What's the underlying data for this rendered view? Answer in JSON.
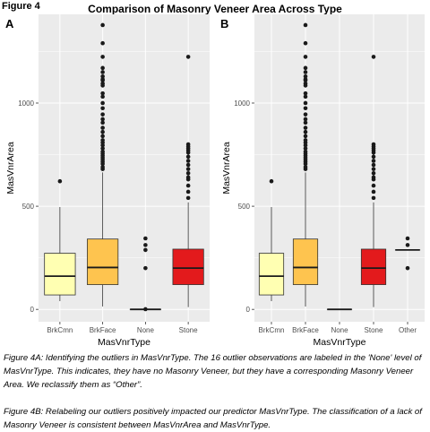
{
  "figure_label": "Figure 4",
  "title": "Comparison of Masonry Veneer Area Across Type",
  "captions": {
    "a": "Figure 4A: Identifying the outliers in MasVnrType. The 16 outlier observations are labeled in the 'None' level of MasVnrType. This indicates, they have no Masonry Veneer, but they have a corresponding Masonry Veneer Area. We reclassify them as “Other”.",
    "b": "Figure 4B: Relabeling our outliers positively impacted our predictor MasVnrType. The classification of a lack of Masonry Veneer is consistent between MasVnrArea and MasVnrType."
  },
  "chart_data": [
    {
      "panel": "A",
      "type": "boxplot",
      "xlabel": "MasVnrType",
      "ylabel": "MasVnrArea",
      "ylim": [
        -60,
        1430
      ],
      "yticks": [
        0,
        500,
        1000
      ],
      "grid": true,
      "categories": [
        "BrkCmn",
        "BrkFace",
        "None",
        "Stone"
      ],
      "boxes": [
        {
          "category": "BrkCmn",
          "color": "#FFFFB2",
          "q1": 70,
          "median": 161,
          "q3": 272,
          "whisker_low": 40,
          "whisker_high": 496,
          "outliers": [
            621
          ]
        },
        {
          "category": "BrkFace",
          "color": "#FEC44F",
          "q1": 120,
          "median": 203,
          "q3": 341,
          "whisker_low": 14,
          "whisker_high": 664,
          "outliers": [
            680,
            690,
            705,
            715,
            725,
            735,
            745,
            755,
            765,
            780,
            795,
            808,
            820,
            840,
            860,
            880,
            905,
            922,
            945,
            975,
            1000,
            1031,
            1047,
            1085,
            1095,
            1110,
            1115,
            1129,
            1150,
            1170,
            1224,
            1290,
            1378
          ]
        },
        {
          "category": "None",
          "color": "#FFFFFF",
          "q1": 0,
          "median": 0,
          "q3": 0,
          "whisker_low": 0,
          "whisker_high": 0,
          "outliers": [
            1,
            200,
            288,
            312,
            344
          ]
        },
        {
          "category": "Stone",
          "color": "#E31A1C",
          "q1": 120,
          "median": 200,
          "q3": 292,
          "whisker_low": 11,
          "whisker_high": 519,
          "outliers": [
            540,
            570,
            600,
            630,
            640,
            660,
            680,
            700,
            720,
            740,
            760,
            770,
            780,
            790,
            800,
            1224
          ]
        }
      ]
    },
    {
      "panel": "B",
      "type": "boxplot",
      "xlabel": "MasVnrType",
      "ylabel": "MasVnrArea",
      "ylim": [
        -60,
        1430
      ],
      "yticks": [
        0,
        500,
        1000
      ],
      "grid": true,
      "categories": [
        "BrkCmn",
        "BrkFace",
        "None",
        "Stone",
        "Other"
      ],
      "boxes": [
        {
          "category": "BrkCmn",
          "color": "#FFFFB2",
          "q1": 70,
          "median": 161,
          "q3": 272,
          "whisker_low": 40,
          "whisker_high": 496,
          "outliers": [
            621
          ]
        },
        {
          "category": "BrkFace",
          "color": "#FEC44F",
          "q1": 120,
          "median": 203,
          "q3": 341,
          "whisker_low": 14,
          "whisker_high": 664,
          "outliers": [
            680,
            690,
            705,
            715,
            725,
            735,
            745,
            755,
            765,
            780,
            795,
            808,
            820,
            840,
            860,
            880,
            905,
            922,
            945,
            975,
            1000,
            1031,
            1047,
            1085,
            1095,
            1110,
            1115,
            1129,
            1150,
            1170,
            1224,
            1290,
            1378
          ]
        },
        {
          "category": "None",
          "color": "#FFFFFF",
          "q1": 0,
          "median": 0,
          "q3": 0,
          "whisker_low": 0,
          "whisker_high": 0,
          "outliers": []
        },
        {
          "category": "Stone",
          "color": "#E31A1C",
          "q1": 120,
          "median": 200,
          "q3": 292,
          "whisker_low": 11,
          "whisker_high": 519,
          "outliers": [
            540,
            570,
            600,
            630,
            640,
            660,
            680,
            700,
            720,
            740,
            760,
            770,
            780,
            790,
            800,
            1224
          ]
        },
        {
          "category": "Other",
          "color": "#FFFFFF",
          "q1": 288,
          "median": 288,
          "q3": 288,
          "whisker_low": 288,
          "whisker_high": 288,
          "outliers": [
            200,
            312,
            344
          ]
        }
      ]
    }
  ]
}
